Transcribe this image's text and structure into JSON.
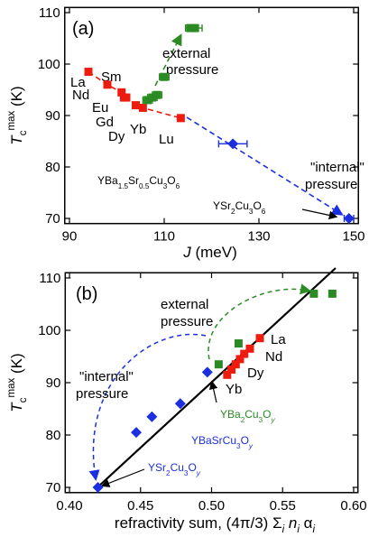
{
  "chart_data": [
    {
      "type": "scatter",
      "panel_label": "(a)",
      "x_label": [
        {
          "text": "J",
          "italic": true
        },
        {
          "text": " (meV)"
        }
      ],
      "y_label": [
        {
          "text": "T",
          "italic": true
        },
        {
          "text": "c",
          "shift": "sub"
        },
        {
          "text": "max",
          "shift": "sup"
        },
        {
          "text": " (K)"
        }
      ],
      "xlim": [
        89,
        151
      ],
      "ylim": [
        69,
        111
      ],
      "xticks": [
        90,
        110,
        130,
        150
      ],
      "yticks": [
        70,
        80,
        90,
        100,
        110
      ],
      "series": [
        {
          "color": "#ee1c0e",
          "marker": "square",
          "line": "dashed",
          "x": [
            94,
            98,
            101,
            101.5,
            102,
            104,
            105.5,
            113.5
          ],
          "values": [
            98.5,
            96,
            94.5,
            93.5,
            93.5,
            92,
            91.5,
            89.5
          ]
        },
        {
          "color": "#2b8a23",
          "marker": "square",
          "x": [
            106.5,
            107.5,
            108.5,
            110,
            115.5,
            116.5
          ],
          "values": [
            93,
            93.5,
            94,
            97.5,
            107,
            107
          ],
          "xerr": [
            1,
            1,
            1,
            1,
            1,
            1.5
          ]
        },
        {
          "color": "#1c2fe0",
          "marker": "diamond",
          "x": [
            124.5,
            149
          ],
          "values": [
            84.5,
            70
          ],
          "xerr": [
            3,
            1
          ]
        }
      ],
      "annotations": [
        "external",
        "pressure",
        "Sm",
        "La",
        "Nd",
        "Eu",
        "Gd",
        "Dy",
        "Yb",
        "Lu",
        [
          {
            "text": "YBa"
          },
          {
            "text": "1.5",
            "shift": "sub"
          },
          {
            "text": "Sr"
          },
          {
            "text": "0.5",
            "shift": "sub"
          },
          {
            "text": "Cu"
          },
          {
            "text": "3",
            "shift": "sub"
          },
          {
            "text": "O"
          },
          {
            "text": "6",
            "shift": "sub"
          }
        ],
        [
          {
            "text": "YSr"
          },
          {
            "text": "2",
            "shift": "sub"
          },
          {
            "text": "Cu"
          },
          {
            "text": "3",
            "shift": "sub"
          },
          {
            "text": "O"
          },
          {
            "text": "6",
            "shift": "sub"
          }
        ],
        "\"internal\"",
        "pressure"
      ]
    },
    {
      "type": "scatter",
      "panel_label": "(b)",
      "x_label": [
        {
          "text": "refractivity sum, (4π/3) Σ"
        },
        {
          "text": "i",
          "shift": "sub",
          "italic": true
        },
        {
          "text": " n",
          "italic": true
        },
        {
          "text": "i",
          "shift": "sub",
          "italic": true
        },
        {
          "text": " α"
        },
        {
          "text": "i",
          "shift": "sub",
          "italic": true
        }
      ],
      "y_label": [
        {
          "text": "T",
          "italic": true
        },
        {
          "text": "c",
          "shift": "sub"
        },
        {
          "text": "max",
          "shift": "sup"
        },
        {
          "text": " (K)"
        }
      ],
      "xlim": [
        0.397,
        0.603
      ],
      "ylim": [
        69,
        111
      ],
      "xticks": [
        {
          "value": 0.4,
          "label": "0.40"
        },
        0.45,
        {
          "value": 0.5,
          "label": "0.50"
        },
        0.55,
        {
          "value": 0.6,
          "label": "0.60"
        }
      ],
      "yticks": [
        70,
        80,
        90,
        100,
        110
      ],
      "series": [
        {
          "color": "#ee1c0e",
          "marker": "square",
          "x": [
            0.511,
            0.514,
            0.517,
            0.52,
            0.523,
            0.527,
            0.534
          ],
          "values": [
            91.5,
            92.5,
            93.5,
            94.5,
            95.5,
            96.5,
            98.5
          ]
        },
        {
          "color": "#2b8a23",
          "marker": "square",
          "x": [
            0.505,
            0.519,
            0.572,
            0.585
          ],
          "values": [
            93.5,
            97.5,
            107,
            107
          ]
        },
        {
          "color": "#1c2fe0",
          "marker": "diamond",
          "x": [
            0.42,
            0.447,
            0.458,
            0.478,
            0.497
          ],
          "values": [
            70,
            80.5,
            83.5,
            86,
            92
          ]
        }
      ],
      "annotations": [
        "external",
        "pressure",
        "La",
        "Nd",
        "Dy",
        "Yb",
        "\"internal\"",
        "pressure",
        [
          {
            "text": "YBa"
          },
          {
            "text": "2",
            "shift": "sub"
          },
          {
            "text": "Cu"
          },
          {
            "text": "3",
            "shift": "sub"
          },
          {
            "text": "O"
          },
          {
            "text": "y",
            "shift": "sub",
            "italic": true
          }
        ],
        [
          {
            "text": "YBaSrCu"
          },
          {
            "text": "3",
            "shift": "sub"
          },
          {
            "text": "O"
          },
          {
            "text": "y",
            "shift": "sub",
            "italic": true
          }
        ],
        [
          {
            "text": "YSr"
          },
          {
            "text": "2",
            "shift": "sub"
          },
          {
            "text": "Cu"
          },
          {
            "text": "3",
            "shift": "sub"
          },
          {
            "text": "O"
          },
          {
            "text": "y",
            "shift": "sub",
            "italic": true
          }
        ]
      ]
    }
  ]
}
